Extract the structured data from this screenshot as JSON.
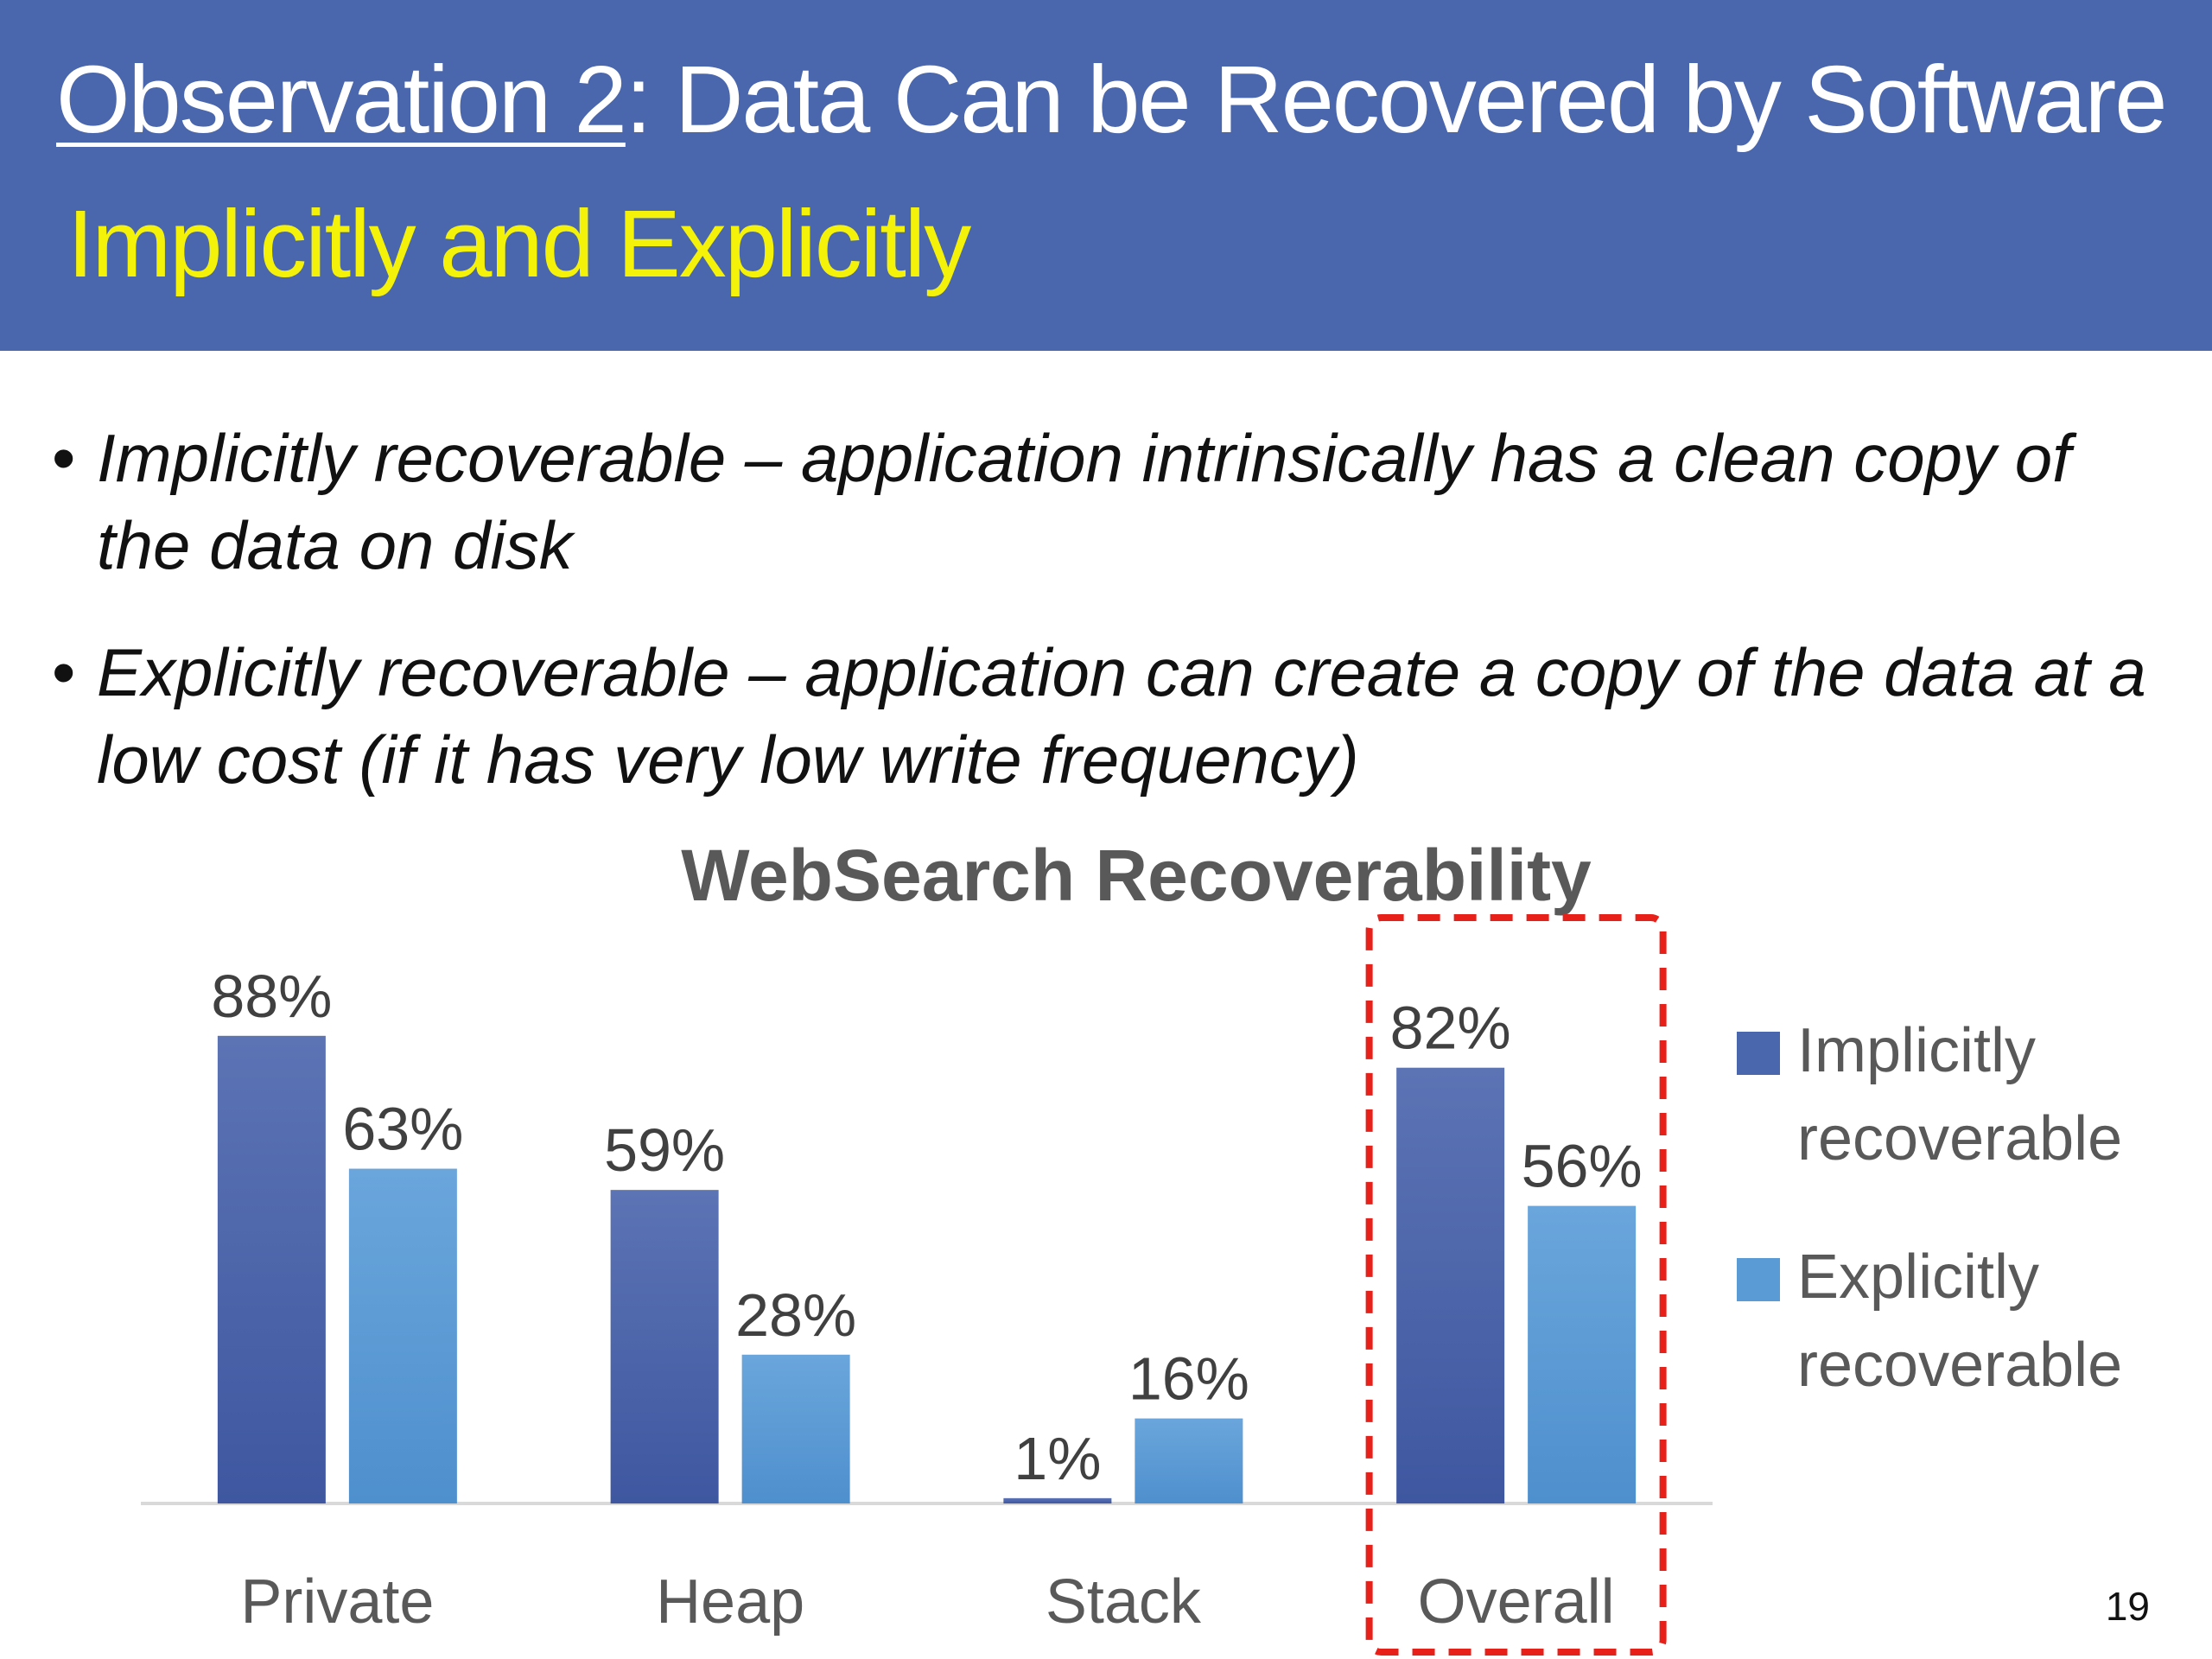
{
  "slide": {
    "title_underlined": "Observation 2",
    "title_rest": ": Data Can be Recovered by Software",
    "subtitle": "Implicitly and Explicitly",
    "page_number": "19",
    "header_color": "#4a66ac",
    "subtitle_color": "#f5f20a"
  },
  "bullets": [
    {
      "text": "Implicitly recoverable – application intrinsically has a clean copy of the data on disk"
    },
    {
      "text": "Explicitly recoverable – application can create a copy of the data at a low cost (if it has very low write frequency)"
    }
  ],
  "chart_data": {
    "type": "bar",
    "title": "WebSearch Recoverability",
    "categories": [
      "Private",
      "Heap",
      "Stack",
      "Overall"
    ],
    "series": [
      {
        "name": "Implicitly recoverable",
        "values": [
          88,
          59,
          1,
          82
        ],
        "labels": [
          "88%",
          "59%",
          "1%",
          "82%"
        ],
        "color": "#4a66ac"
      },
      {
        "name": "Explicitly recoverable",
        "values": [
          63,
          28,
          16,
          56
        ],
        "labels": [
          "63%",
          "28%",
          "16%",
          "56%"
        ],
        "color": "#5b9bd5"
      }
    ],
    "ylim": [
      0,
      100
    ],
    "grid": false,
    "legend_position": "right",
    "highlight_category": "Overall",
    "highlight_color": "#e8201a"
  }
}
